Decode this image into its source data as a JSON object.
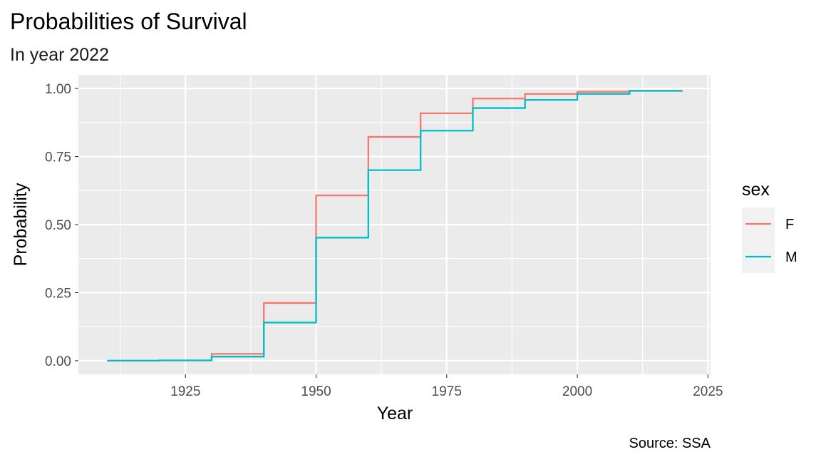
{
  "chart_data": {
    "type": "line",
    "step": true,
    "title": "Probabilities of Survival",
    "subtitle": "In year 2022",
    "xlabel": "Year",
    "ylabel": "Probability",
    "caption": "Source: SSA",
    "xlim": [
      1904.5,
      2025.5
    ],
    "ylim": [
      -0.05,
      1.05
    ],
    "xticks": [
      1925,
      1950,
      1975,
      2000,
      2025
    ],
    "yticks": [
      0,
      0.25,
      0.5,
      0.75,
      1.0
    ],
    "ytick_labels": [
      "0.00",
      "0.25",
      "0.50",
      "0.75",
      "1.00"
    ],
    "grid": true,
    "legend": {
      "title": "sex",
      "position": "right"
    },
    "x": [
      1910,
      1920,
      1930,
      1940,
      1950,
      1960,
      1970,
      1980,
      1990,
      2000,
      2010,
      2020
    ],
    "series": [
      {
        "name": "F",
        "color": "#F8766D",
        "values": [
          0.0,
          0.001,
          0.025,
          0.212,
          0.607,
          0.822,
          0.909,
          0.963,
          0.98,
          0.988,
          0.992,
          0.993
        ]
      },
      {
        "name": "M",
        "color": "#00BFC4",
        "values": [
          0.0,
          0.001,
          0.015,
          0.14,
          0.452,
          0.7,
          0.845,
          0.928,
          0.958,
          0.98,
          0.991,
          0.993
        ]
      }
    ]
  }
}
